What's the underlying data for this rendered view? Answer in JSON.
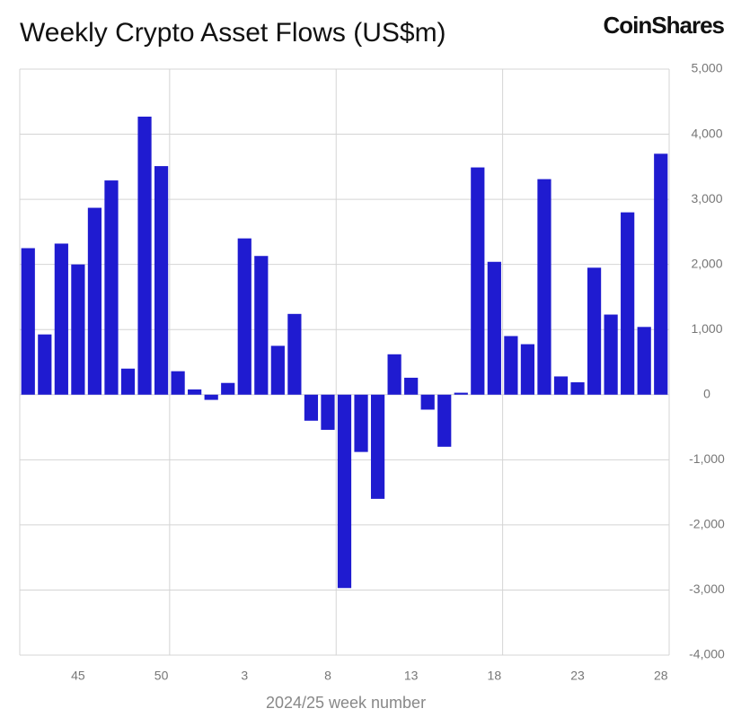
{
  "logo": "CoinShares",
  "chart_data": {
    "type": "bar",
    "title": "Weekly Crypto Asset Flows (US$m)",
    "x_label": "2024/25 week number",
    "categories": [
      null,
      null,
      null,
      "45",
      null,
      null,
      null,
      null,
      "50",
      null,
      null,
      null,
      null,
      "3",
      null,
      null,
      null,
      null,
      "8",
      null,
      null,
      null,
      null,
      "13",
      null,
      null,
      null,
      null,
      "18",
      null,
      null,
      null,
      null,
      "23",
      null,
      null,
      null,
      null,
      "28"
    ],
    "values": [
      2250,
      925,
      2320,
      2000,
      2870,
      3290,
      400,
      4270,
      3510,
      360,
      80,
      -80,
      180,
      2400,
      2130,
      750,
      1240,
      -400,
      -540,
      -2970,
      -880,
      -1600,
      620,
      260,
      -230,
      -800,
      30,
      3490,
      2040,
      900,
      775,
      3310,
      280,
      190,
      1950,
      1230,
      2800,
      1040,
      3700
    ],
    "color": "#1f1bd0",
    "ylim": [
      -4000,
      5000
    ],
    "yticks": [
      {
        "value": -4000,
        "label": "-4,000"
      },
      {
        "value": -3000,
        "label": "-3,000"
      },
      {
        "value": -2000,
        "label": "-2,000"
      },
      {
        "value": -1000,
        "label": "-1,000"
      },
      0,
      {
        "value": 1000,
        "label": "1,000"
      },
      {
        "value": 2000,
        "label": "2,000"
      },
      {
        "value": 3000,
        "label": "3,000"
      },
      {
        "value": 4000,
        "label": "4,000"
      },
      {
        "value": 5000,
        "label": "5,000"
      }
    ],
    "grid": true,
    "y_axis_side": "right"
  }
}
